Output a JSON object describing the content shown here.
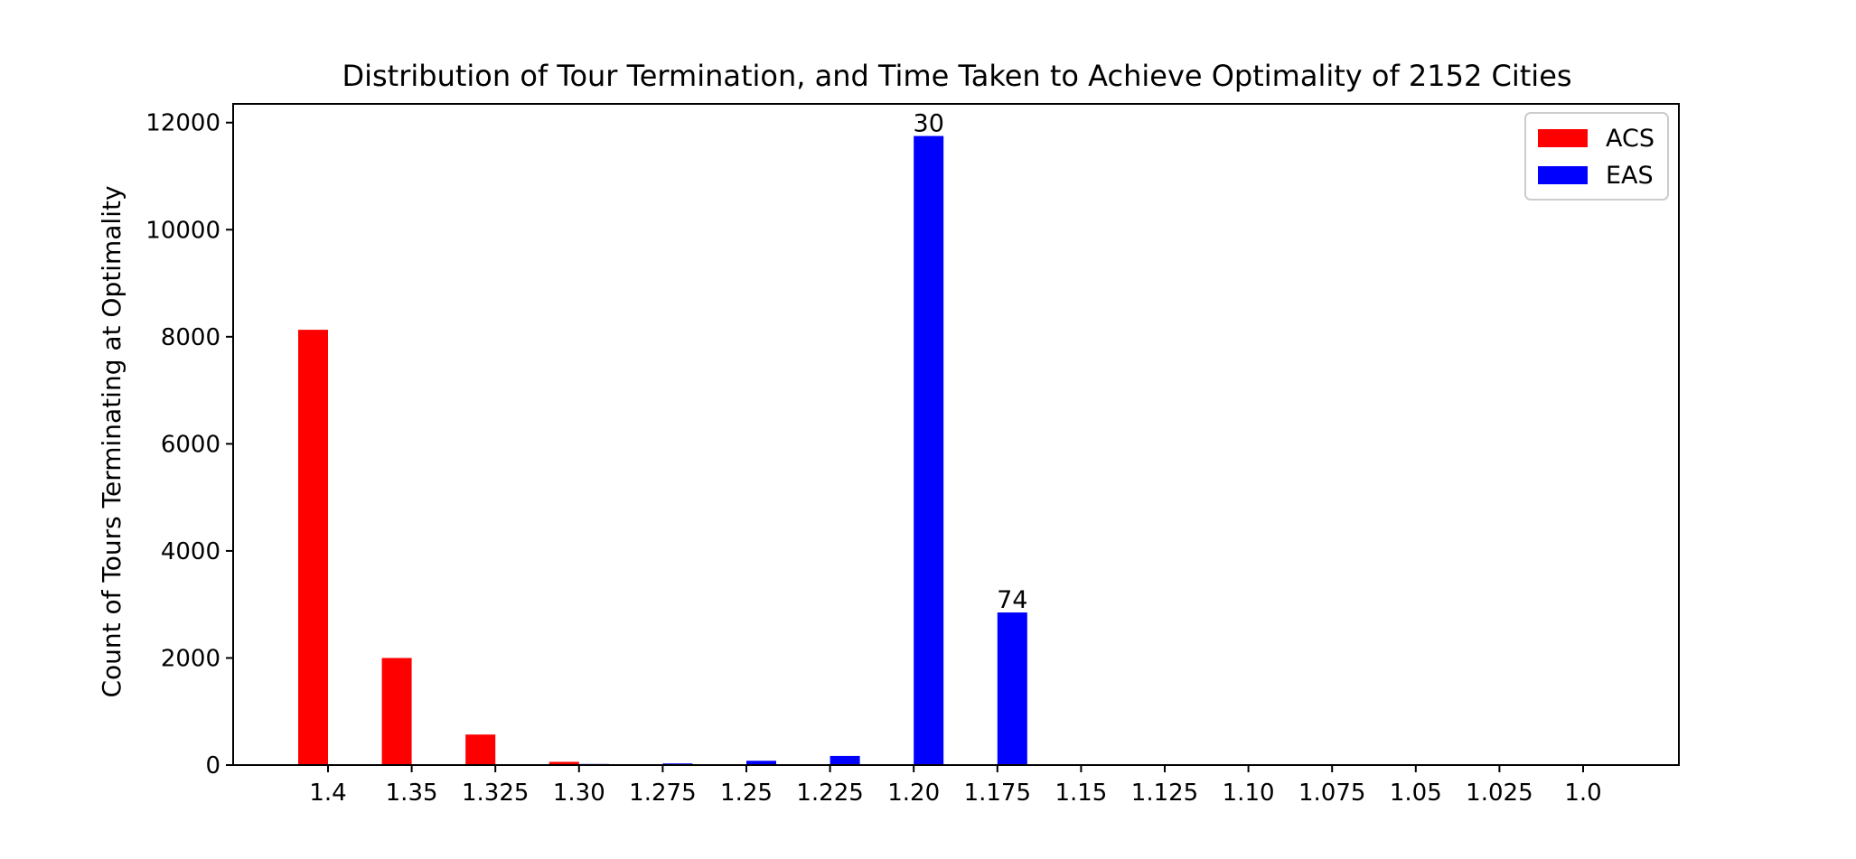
{
  "chart_data": {
    "type": "bar",
    "title": "Distribution of Tour Termination, and Time Taken to Achieve Optimality of 2152 Cities",
    "xlabel": "",
    "ylabel": "Count of Tours Terminating at Optimality",
    "categories": [
      "1.4",
      "1.35",
      "1.325",
      "1.30",
      "1.275",
      "1.25",
      "1.225",
      "1.20",
      "1.175",
      "1.15",
      "1.125",
      "1.10",
      "1.075",
      "1.05",
      "1.025",
      "1.0"
    ],
    "series": [
      {
        "name": "ACS",
        "color": "#ff0000",
        "values": [
          8130,
          2000,
          570,
          60,
          0,
          0,
          0,
          0,
          0,
          0,
          0,
          0,
          0,
          0,
          0,
          0
        ]
      },
      {
        "name": "EAS",
        "color": "#0000ff",
        "values": [
          0,
          0,
          0,
          20,
          30,
          80,
          170,
          11750,
          2850,
          0,
          0,
          0,
          0,
          0,
          0,
          0
        ]
      }
    ],
    "ylim": [
      0,
      12350
    ],
    "yticks": [
      0,
      2000,
      4000,
      6000,
      8000,
      10000,
      12000
    ],
    "annotations": [
      {
        "text": "30",
        "category": "1.20",
        "series": "EAS"
      },
      {
        "text": "74",
        "category": "1.175",
        "series": "EAS"
      }
    ],
    "legend_position": "top-right",
    "grid": false
  }
}
